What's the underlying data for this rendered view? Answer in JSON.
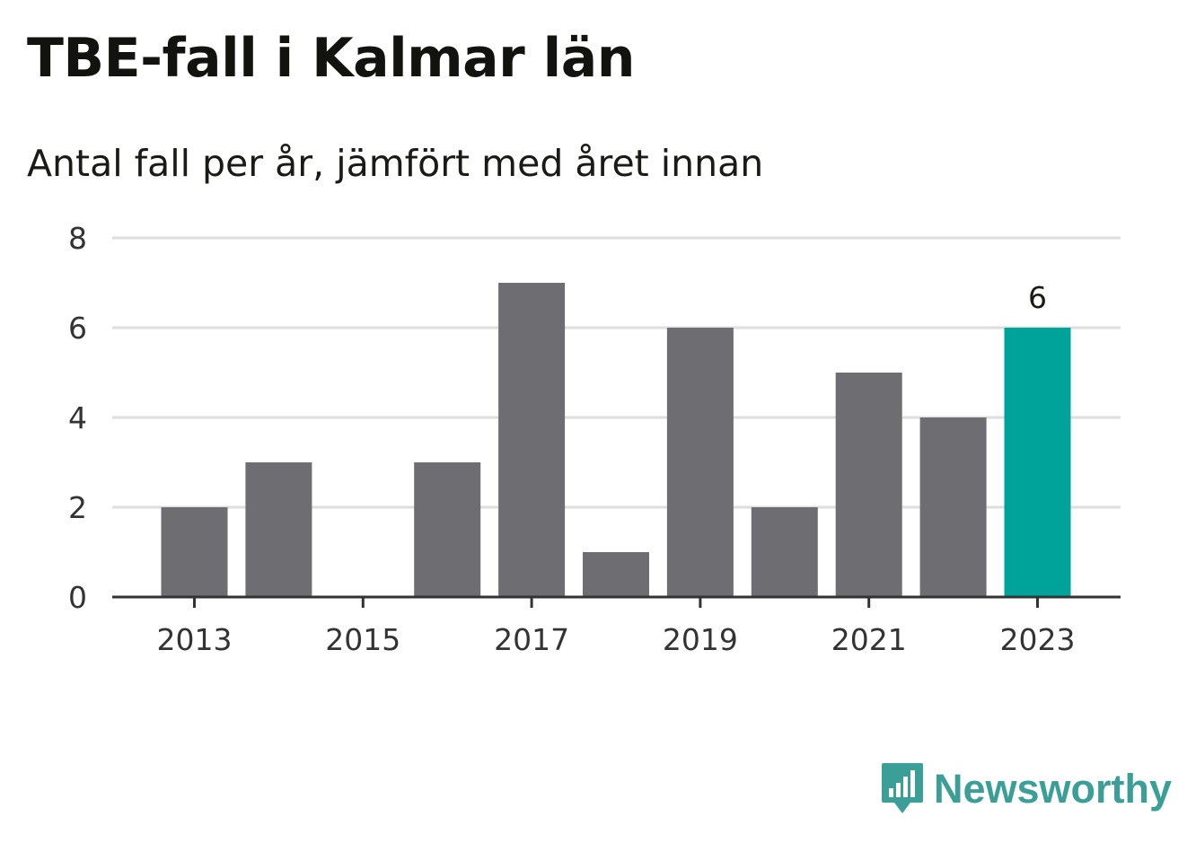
{
  "title": "TBE-fall i Kalmar län",
  "subtitle": "Antal fall per år, jämfört med året innan",
  "brand": {
    "name": "Newsworthy",
    "icon": "newsworthy-logo-icon",
    "color": "#3c9f97"
  },
  "colors": {
    "bar": "#6e6d72",
    "highlight": "#00a39a",
    "grid": "#dedede",
    "axis": "#333333"
  },
  "chart_data": {
    "type": "bar",
    "title": "TBE-fall i Kalmar län",
    "subtitle": "Antal fall per år, jämfört med året innan",
    "categories": [
      "2013",
      "2014",
      "2015",
      "2016",
      "2017",
      "2018",
      "2019",
      "2020",
      "2021",
      "2022",
      "2023"
    ],
    "values": [
      2,
      3,
      0,
      3,
      7,
      1,
      6,
      2,
      5,
      4,
      6
    ],
    "x_tick_labels": [
      "2013",
      "2015",
      "2017",
      "2019",
      "2021",
      "2023"
    ],
    "y_ticks": [
      0,
      2,
      4,
      6,
      8
    ],
    "ylim": [
      0,
      8
    ],
    "highlight_category": "2023",
    "data_labels": [
      {
        "category": "2023",
        "text": "6"
      }
    ],
    "grid": true,
    "legend": "none",
    "xlabel": "",
    "ylabel": ""
  }
}
